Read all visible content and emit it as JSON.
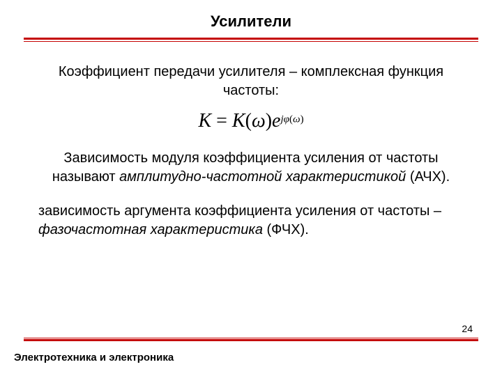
{
  "colors": {
    "rule": "#c40000",
    "text": "#000000",
    "background": "#ffffff"
  },
  "typography": {
    "title_fontsize": 22,
    "body_fontsize": 20,
    "formula_fontsize": 28,
    "exponent_fontsize": 15,
    "footer_fontsize": 15,
    "page_number_fontsize": 14,
    "title_weight": "bold",
    "footer_weight": "bold",
    "body_font": "Arial",
    "formula_font": "Times New Roman"
  },
  "title": "Усилители",
  "intro": "Коэффициент передачи  усилителя – комплексная функция частоты:",
  "formula": {
    "lhs": "K",
    "equals": " = ",
    "rhs_func": "K",
    "rhs_arg_open": "(",
    "rhs_arg": "ω",
    "rhs_arg_close": ")",
    "e": "e",
    "exp_j": "j",
    "exp_phi": "φ",
    "exp_open": "(",
    "exp_arg": "ω",
    "exp_close": ")"
  },
  "def1": {
    "pre": "Зависимость модуля коэффициента усиления от частоты называют ",
    "em": "амплитудно-частотной характеристикой",
    "post": " (АЧХ)."
  },
  "def2": {
    "pre": "зависимость аргумента коэффициента усиления от частоты – ",
    "em": "фазочастотная характеристика",
    "post": " (ФЧХ)."
  },
  "page_number": "24",
  "footer": "Электротехника и электроника"
}
